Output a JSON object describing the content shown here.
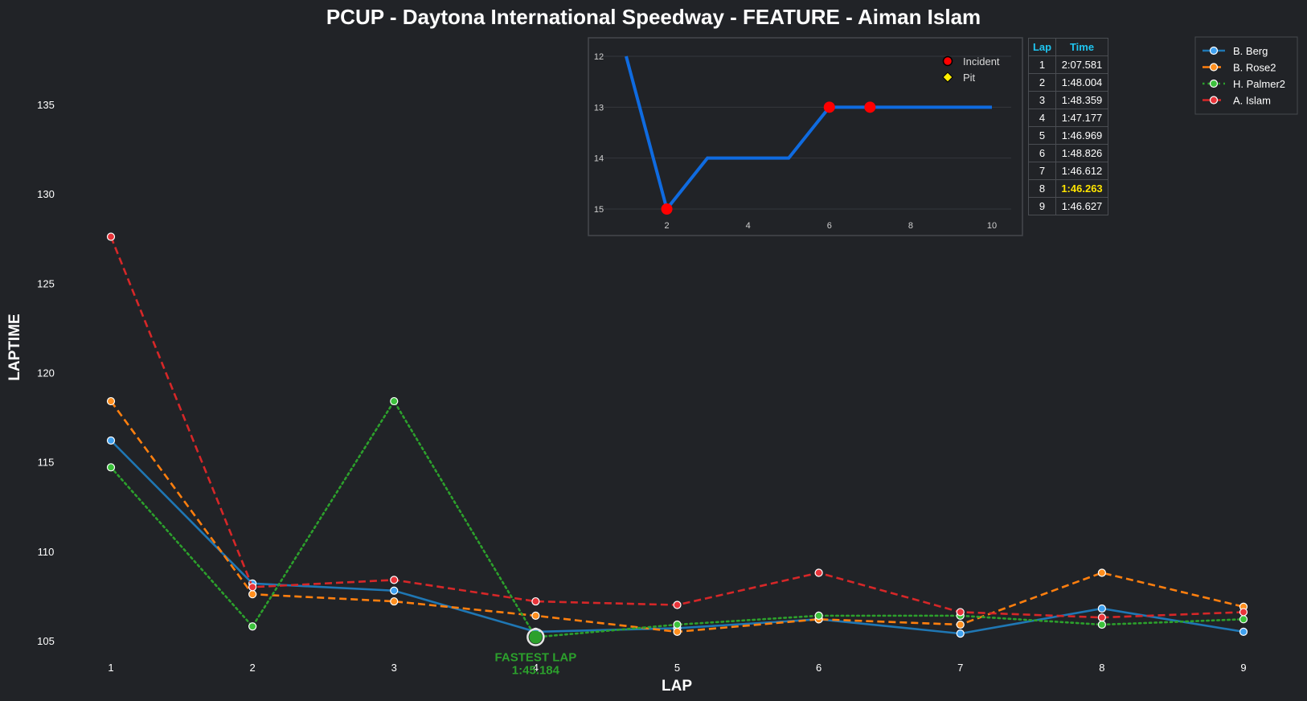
{
  "chart_data": [
    {
      "type": "line",
      "title": "PCUP - Daytona International Speedway - FEATURE - Aiman Islam",
      "xlabel": "LAP",
      "ylabel": "LAPTIME",
      "x": [
        1,
        2,
        3,
        4,
        5,
        6,
        7,
        8,
        9
      ],
      "xlim": [
        0.47,
        9.6
      ],
      "ylim": [
        103.8,
        138.7
      ],
      "yticks": [
        105,
        110,
        115,
        120,
        125,
        130,
        135
      ],
      "grid": false,
      "legend_position": "top-right",
      "series": [
        {
          "name": "B. Berg",
          "color": "#1f77b4",
          "marker_color": "#3fa1f0",
          "style": "solid",
          "values": [
            116.2,
            108.2,
            107.8,
            105.5,
            105.7,
            106.2,
            105.4,
            106.8,
            105.5
          ]
        },
        {
          "name": "B. Rose2",
          "color": "#ff7f0e",
          "marker_color": "#ff8f1f",
          "style": "dashed",
          "values": [
            118.4,
            107.6,
            107.2,
            106.4,
            105.5,
            106.2,
            105.9,
            108.8,
            106.9
          ]
        },
        {
          "name": "H. Palmer2",
          "color": "#2ca02c",
          "marker_color": "#3cc23c",
          "style": "dotted",
          "values": [
            114.7,
            105.8,
            118.4,
            105.2,
            105.9,
            106.4,
            106.4,
            105.9,
            106.2
          ]
        },
        {
          "name": "A. Islam",
          "color": "#d62728",
          "marker_color": "#e8343a",
          "style": "dashed",
          "values": [
            127.6,
            108.0,
            108.4,
            107.2,
            107.0,
            108.8,
            106.6,
            106.3,
            106.6
          ]
        }
      ],
      "annotations": [
        {
          "text_line1": "FASTEST LAP",
          "text_line2": "1:45.184",
          "x": 4,
          "y": 105.2,
          "color": "#2ca02c"
        }
      ]
    },
    {
      "type": "line",
      "title": "",
      "x": [
        1,
        2,
        3,
        4,
        5,
        6,
        7,
        8,
        9,
        10
      ],
      "values": [
        12,
        15,
        14,
        14,
        14,
        13,
        13,
        13,
        13,
        13
      ],
      "xlim": [
        0.5,
        10.5
      ],
      "ylim": [
        15.3,
        11.7
      ],
      "y_inverted": true,
      "xticks": [
        2,
        4,
        6,
        8,
        10
      ],
      "yticks": [
        12,
        13,
        14,
        15
      ],
      "grid": true,
      "color": "#0f6be0",
      "incidents": [
        {
          "x": 2,
          "y": 15
        },
        {
          "x": 6,
          "y": 13
        },
        {
          "x": 7,
          "y": 13
        }
      ],
      "legend_position": "top-right",
      "legend": [
        {
          "label": "Incident",
          "marker": "circle",
          "color": "#ff0000"
        },
        {
          "label": "Pit",
          "marker": "diamond",
          "color": "#ffee00"
        }
      ]
    }
  ],
  "lap_table": {
    "headers": [
      "Lap",
      "Time"
    ],
    "rows": [
      {
        "lap": "1",
        "time": "2:07.581",
        "best": false
      },
      {
        "lap": "2",
        "time": "1:48.004",
        "best": false
      },
      {
        "lap": "3",
        "time": "1:48.359",
        "best": false
      },
      {
        "lap": "4",
        "time": "1:47.177",
        "best": false
      },
      {
        "lap": "5",
        "time": "1:46.969",
        "best": false
      },
      {
        "lap": "6",
        "time": "1:48.826",
        "best": false
      },
      {
        "lap": "7",
        "time": "1:46.612",
        "best": false
      },
      {
        "lap": "8",
        "time": "1:46.263",
        "best": true
      },
      {
        "lap": "9",
        "time": "1:46.627",
        "best": false
      }
    ]
  },
  "colors": {
    "background": "#212327",
    "table_header": "#1fc5f0",
    "best_lap": "#ffe500"
  }
}
